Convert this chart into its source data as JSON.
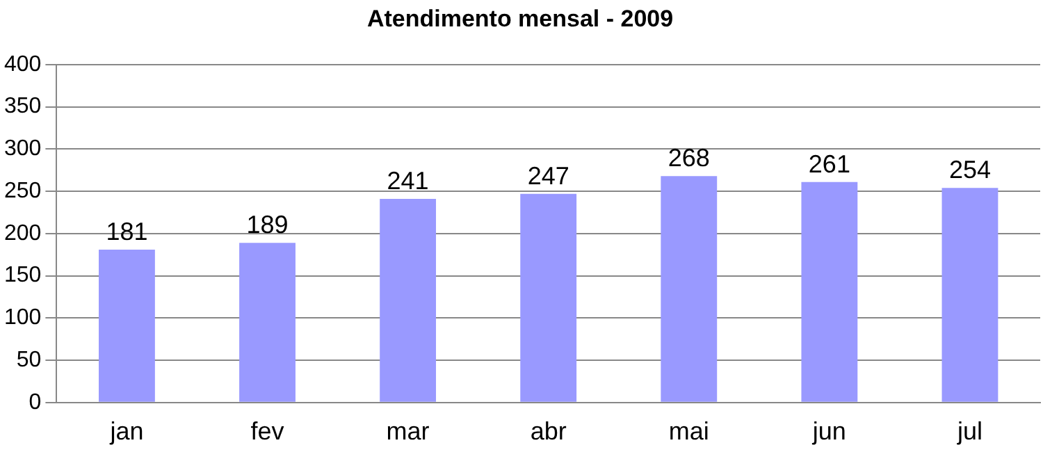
{
  "chart_data": {
    "type": "bar",
    "title": "Atendimento mensal - 2009",
    "categories": [
      "jan",
      "fev",
      "mar",
      "abr",
      "mai",
      "jun",
      "jul"
    ],
    "values": [
      181,
      189,
      241,
      247,
      268,
      261,
      254
    ],
    "color": "#9999ff",
    "ylim": [
      0,
      400
    ],
    "yticks": [
      0,
      50,
      100,
      150,
      200,
      250,
      300,
      350,
      400
    ],
    "grid": "y",
    "data_labels": true,
    "legend": false
  }
}
